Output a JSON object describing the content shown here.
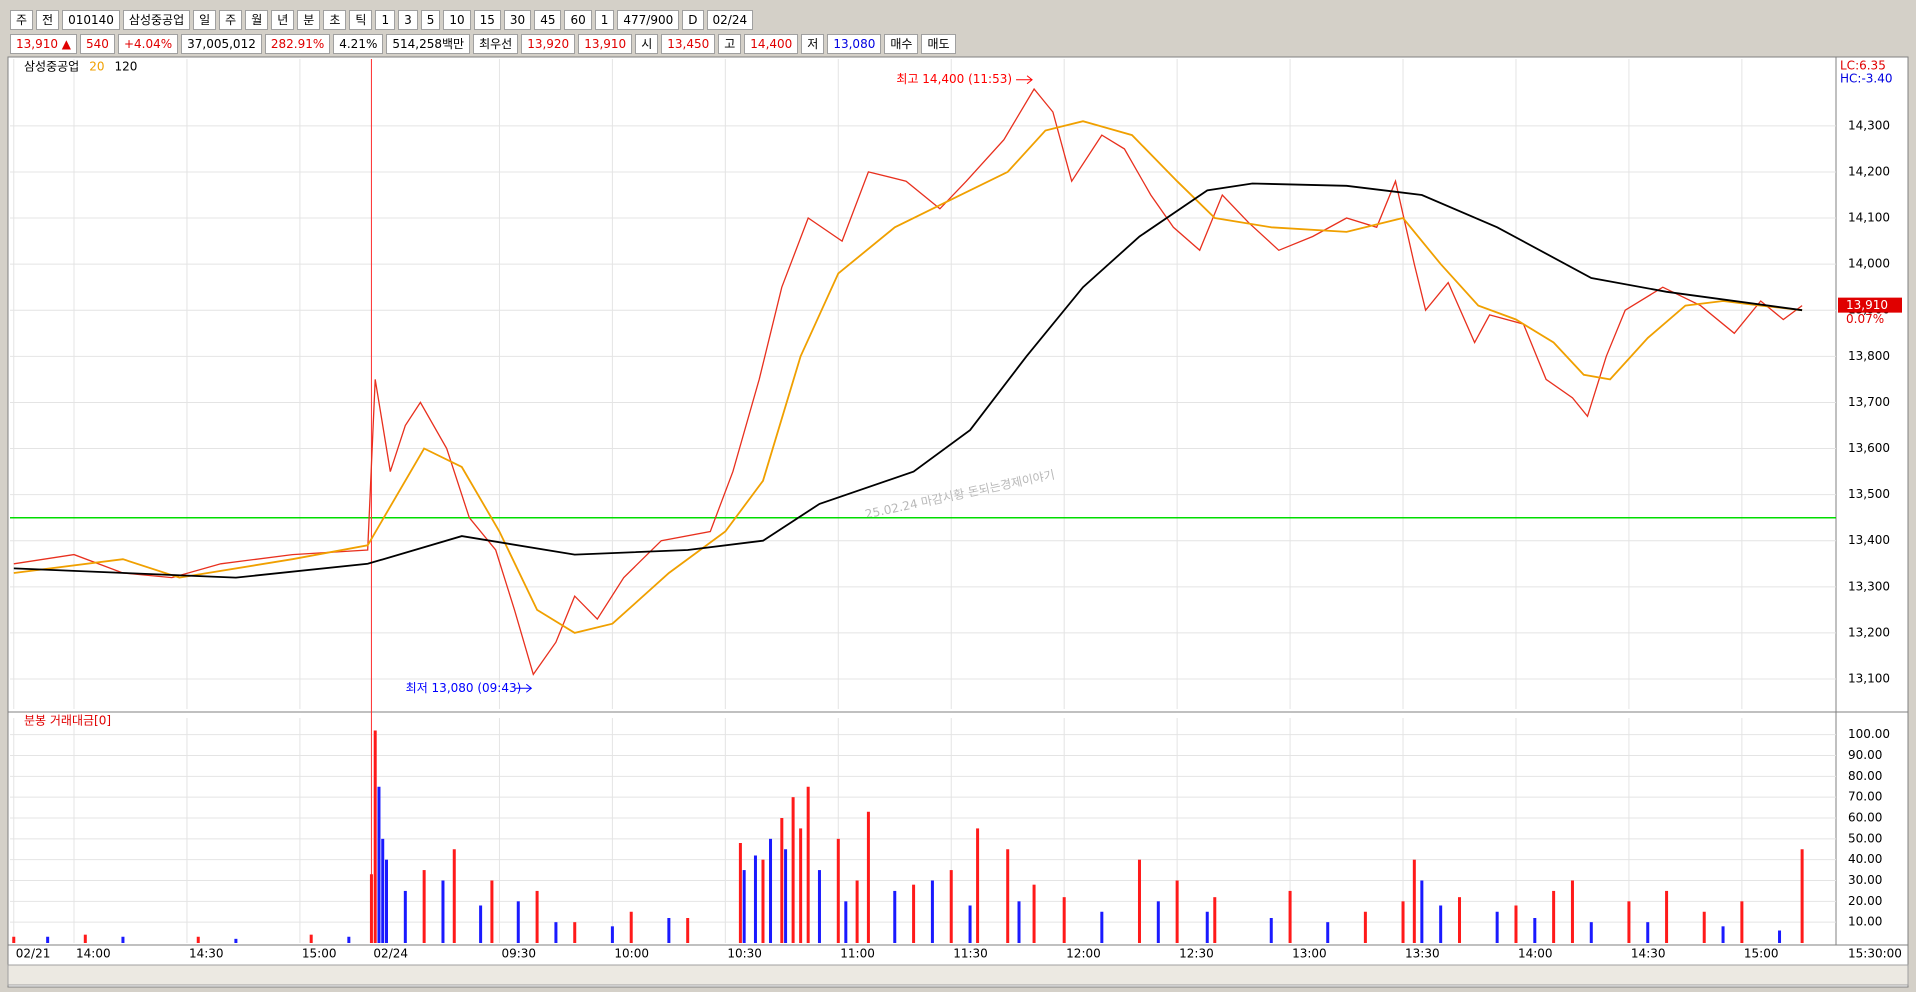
{
  "toolbar": {
    "items": [
      "주",
      "전",
      "010140",
      "삼성중공업",
      "일",
      "주",
      "월",
      "년",
      "분",
      "초",
      "틱",
      "1",
      "3",
      "5",
      "10",
      "15",
      "30",
      "45",
      "60",
      "1",
      "477/900",
      "D",
      "02/24"
    ]
  },
  "info_bar": {
    "items": [
      {
        "text": "13,910 ▲",
        "color": "#e00000"
      },
      {
        "text": "540",
        "color": "#e00000"
      },
      {
        "text": "+4.04%",
        "color": "#e00000"
      },
      {
        "text": "37,005,012",
        "color": "#000000"
      },
      {
        "text": "282.91%",
        "color": "#e00000"
      },
      {
        "text": "4.21%",
        "color": "#000000"
      },
      {
        "text": "514,258백만",
        "color": "#000000"
      },
      {
        "text": "최우선",
        "color": "#000000"
      },
      {
        "text": "13,920",
        "color": "#e00000"
      },
      {
        "text": "13,910",
        "color": "#e00000"
      },
      {
        "text": "시",
        "color": "#000000"
      },
      {
        "text": "13,450",
        "color": "#e00000"
      },
      {
        "text": "고",
        "color": "#000000"
      },
      {
        "text": "14,400",
        "color": "#e00000"
      },
      {
        "text": "저",
        "color": "#000000"
      },
      {
        "text": "13,080",
        "color": "#0000e0"
      },
      {
        "text": "매수",
        "color": "#000000"
      },
      {
        "text": "매도",
        "color": "#000000"
      }
    ]
  },
  "chart_data": [
    {
      "type": "line",
      "legend": "top-left",
      "grid": true,
      "series": [
        {
          "name": "삼성중공업",
          "color": "#e8301e",
          "x": [
            1,
            17,
            30,
            43,
            56,
            75,
            95,
            97,
            101,
            105,
            109,
            116,
            122,
            129,
            134,
            139,
            145,
            150,
            156,
            163,
            173,
            186,
            192,
            199,
            205,
            212,
            221,
            228,
            238,
            247,
            254,
            264,
            272,
            277,
            282,
            290,
            296,
            303,
            309,
            316,
            322,
            329,
            337,
            346,
            355,
            363,
            368,
            373,
            376,
            382,
            389,
            393,
            402,
            408,
            415,
            419,
            424,
            429,
            439,
            449,
            458,
            465,
            471,
            476
          ],
          "values": [
            13350,
            13370,
            13330,
            13320,
            13350,
            13370,
            13380,
            13750,
            13550,
            13650,
            13700,
            13600,
            13450,
            13380,
            13250,
            13110,
            13180,
            13280,
            13230,
            13320,
            13400,
            13420,
            13550,
            13750,
            13950,
            14100,
            14050,
            14200,
            14180,
            14120,
            14180,
            14270,
            14380,
            14330,
            14180,
            14280,
            14250,
            14150,
            14080,
            14030,
            14150,
            14090,
            14030,
            14060,
            14100,
            14080,
            14180,
            14000,
            13900,
            13960,
            13830,
            13890,
            13870,
            13750,
            13710,
            13670,
            13800,
            13900,
            13950,
            13910,
            13850,
            13920,
            13880,
            13910
          ]
        },
        {
          "name": "20",
          "color": "#f0a000",
          "x": [
            1,
            30,
            45,
            75,
            95,
            110,
            120,
            130,
            140,
            150,
            160,
            175,
            190,
            200,
            210,
            220,
            235,
            250,
            265,
            275,
            285,
            298,
            310,
            320,
            335,
            355,
            370,
            380,
            390,
            400,
            410,
            418,
            425,
            435,
            445,
            455,
            465,
            476
          ],
          "values": [
            13330,
            13360,
            13320,
            13360,
            13390,
            13600,
            13560,
            13420,
            13250,
            13200,
            13220,
            13330,
            13420,
            13530,
            13800,
            13980,
            14080,
            14140,
            14200,
            14290,
            14310,
            14280,
            14180,
            14100,
            14080,
            14070,
            14100,
            14000,
            13910,
            13880,
            13830,
            13760,
            13750,
            13840,
            13910,
            13920,
            13910,
            13900
          ]
        },
        {
          "name": "120",
          "color": "#000000",
          "x": [
            1,
            60,
            95,
            120,
            150,
            180,
            200,
            215,
            240,
            255,
            270,
            285,
            300,
            318,
            330,
            355,
            375,
            395,
            420,
            440,
            476
          ],
          "values": [
            13340,
            13320,
            13350,
            13410,
            13370,
            13380,
            13400,
            13480,
            13550,
            13640,
            13800,
            13950,
            14060,
            14160,
            14175,
            14170,
            14150,
            14080,
            13970,
            13940,
            13900
          ]
        }
      ],
      "xlim": [
        0,
        485
      ],
      "ylim": [
        13035,
        14445
      ],
      "yticks": [
        {
          "value": 13100,
          "label": "13,100"
        },
        {
          "value": 13200,
          "label": "13,200"
        },
        {
          "value": 13300,
          "label": "13,300"
        },
        {
          "value": 13400,
          "label": "13,400"
        },
        {
          "value": 13500,
          "label": "13,500"
        },
        {
          "value": 13600,
          "label": "13,600"
        },
        {
          "value": 13700,
          "label": "13,700"
        },
        {
          "value": 13800,
          "label": "13,800"
        },
        {
          "value": 13900,
          "label": "13,900"
        },
        {
          "value": 14000,
          "label": "14,000"
        },
        {
          "value": 14100,
          "label": "14,100"
        },
        {
          "value": 14200,
          "label": "14,200"
        },
        {
          "value": 14300,
          "label": "14,300"
        }
      ],
      "reference_lines": [
        {
          "axis": "y",
          "value": 13450,
          "color": "#00dd00"
        },
        {
          "axis": "x",
          "value": 96,
          "color": "#ff3030"
        }
      ],
      "annotations": [
        {
          "text": "최고 14,400 (11:53)",
          "x": 272,
          "y": 14400,
          "color": "#ff0000"
        },
        {
          "text": "최저 13,080 (09:43)",
          "x": 139,
          "y": 13080,
          "color": "#0000ff"
        }
      ],
      "watermark": "25.02.24 마감시황 돈되는경제이야기",
      "corner_labels": [
        {
          "text": "LC:6.35",
          "color": "#e00000"
        },
        {
          "text": "HC:-3.40",
          "color": "#0000e0"
        }
      ],
      "last_price": {
        "value": 13910,
        "label": "13,910"
      },
      "last_change": "0.07%"
    },
    {
      "type": "bar",
      "title": "분봉 거래대금[0]",
      "grid": true,
      "series": [
        {
          "color": "#ff1a1a",
          "x": [
            1,
            20,
            50,
            80,
            96,
            97,
            110,
            118,
            128,
            140,
            150,
            165,
            180,
            194,
            200,
            205,
            208,
            210,
            212,
            220,
            225,
            228,
            240,
            250,
            257,
            265,
            272,
            280,
            300,
            310,
            320,
            340,
            360,
            370,
            373,
            385,
            400,
            410,
            415,
            430,
            440,
            450,
            460,
            476
          ],
          "values": [
            3,
            4,
            3,
            4,
            33,
            102,
            35,
            45,
            30,
            25,
            10,
            15,
            12,
            48,
            40,
            60,
            70,
            55,
            75,
            50,
            30,
            63,
            28,
            35,
            55,
            45,
            28,
            22,
            40,
            30,
            22,
            25,
            15,
            20,
            40,
            22,
            18,
            25,
            30,
            20,
            25,
            15,
            20,
            45
          ]
        },
        {
          "color": "#1a1aff",
          "x": [
            10,
            30,
            60,
            90,
            98,
            99,
            100,
            105,
            115,
            125,
            135,
            145,
            160,
            175,
            195,
            198,
            202,
            206,
            215,
            222,
            235,
            245,
            255,
            268,
            290,
            305,
            318,
            335,
            350,
            375,
            380,
            395,
            405,
            420,
            435,
            455,
            470
          ],
          "values": [
            3,
            3,
            2,
            3,
            75,
            50,
            40,
            25,
            30,
            18,
            20,
            10,
            8,
            12,
            35,
            42,
            50,
            45,
            35,
            20,
            25,
            30,
            18,
            20,
            15,
            20,
            15,
            12,
            10,
            30,
            18,
            15,
            12,
            10,
            10,
            8,
            6
          ]
        }
      ],
      "xlim": [
        0,
        485
      ],
      "ylim": [
        0,
        108
      ],
      "yticks": [
        {
          "value": 10,
          "label": "10.00"
        },
        {
          "value": 20,
          "label": "20.00"
        },
        {
          "value": 30,
          "label": "30.00"
        },
        {
          "value": 40,
          "label": "40.00"
        },
        {
          "value": 50,
          "label": "50.00"
        },
        {
          "value": 60,
          "label": "60.00"
        },
        {
          "value": 70,
          "label": "70.00"
        },
        {
          "value": 80,
          "label": "80.00"
        },
        {
          "value": 90,
          "label": "90.00"
        },
        {
          "value": 100,
          "label": "100.00"
        }
      ],
      "xticks": [
        {
          "value": 1,
          "label": "02/21"
        },
        {
          "value": 17,
          "label": "14:00"
        },
        {
          "value": 47,
          "label": "14:30"
        },
        {
          "value": 77,
          "label": "15:00"
        },
        {
          "value": 96,
          "label": "02/24"
        },
        {
          "value": 130,
          "label": "09:30"
        },
        {
          "value": 160,
          "label": "10:00"
        },
        {
          "value": 190,
          "label": "10:30"
        },
        {
          "value": 220,
          "label": "11:00"
        },
        {
          "value": 250,
          "label": "11:30"
        },
        {
          "value": 280,
          "label": "12:00"
        },
        {
          "value": 310,
          "label": "12:30"
        },
        {
          "value": 340,
          "label": "13:00"
        },
        {
          "value": 370,
          "label": "13:30"
        },
        {
          "value": 400,
          "label": "14:00"
        },
        {
          "value": 430,
          "label": "14:30"
        },
        {
          "value": 460,
          "label": "15:00"
        }
      ],
      "x_end_label": "15:30:00"
    }
  ]
}
